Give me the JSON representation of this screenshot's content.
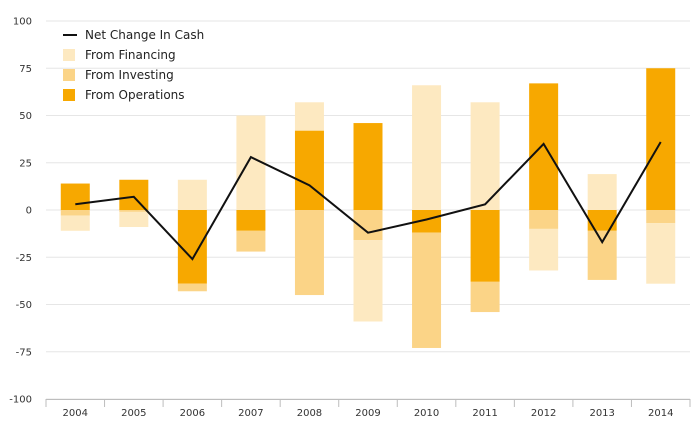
{
  "chart_data": {
    "type": "bar",
    "stacked": true,
    "categories": [
      "2004",
      "2005",
      "2006",
      "2007",
      "2008",
      "2009",
      "2010",
      "2011",
      "2012",
      "2013",
      "2014"
    ],
    "series": [
      {
        "name": "From Operations",
        "kind": "bar",
        "color": "#f7a800",
        "values": [
          14,
          16,
          -39,
          -11,
          42,
          46,
          -12,
          -38,
          67,
          -11,
          75
        ]
      },
      {
        "name": "From Investing",
        "kind": "bar",
        "color": "#fbd487",
        "values": [
          -3,
          -1,
          -4,
          -11,
          -45,
          -16,
          -61,
          -16,
          -10,
          -26,
          -7
        ]
      },
      {
        "name": "From Financing",
        "kind": "bar",
        "color": "#fde9c1",
        "values": [
          -8,
          -8,
          16,
          50,
          15,
          -43,
          66,
          57,
          -22,
          19,
          -32
        ]
      },
      {
        "name": "Net Change In Cash",
        "kind": "line",
        "color": "#111111",
        "values": [
          3,
          7,
          -26,
          28,
          13,
          -12,
          -5,
          3,
          35,
          -17,
          36
        ]
      }
    ],
    "ylim": [
      -100,
      100
    ],
    "yticks": [
      "100",
      "75",
      "50",
      "25",
      "0",
      "-25",
      "-50",
      "-75",
      "-100"
    ],
    "title": "",
    "xlabel": "",
    "ylabel": "",
    "legend": {
      "placement": "top-left",
      "items": [
        {
          "label": "Net Change In Cash",
          "swatch": "line",
          "color": "#111111"
        },
        {
          "label": "From Financing",
          "swatch": "box",
          "color": "#fde9c1"
        },
        {
          "label": "From Investing",
          "swatch": "box",
          "color": "#fbd487"
        },
        {
          "label": "From Operations",
          "swatch": "box",
          "color": "#f7a800"
        }
      ]
    },
    "grid": true
  }
}
